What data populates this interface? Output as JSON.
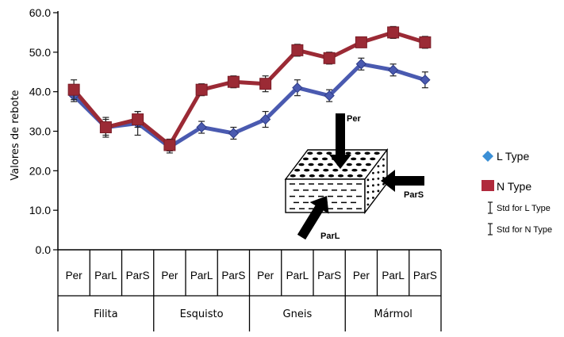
{
  "chart_data": {
    "type": "line",
    "ylabel": "Valores de rebote",
    "ylim": [
      0,
      60
    ],
    "yticks": [
      "0.0",
      "10.0",
      "20.0",
      "30.0",
      "40.0",
      "50.0",
      "60.0"
    ],
    "categories": [
      "Per",
      "ParL",
      "ParS",
      "Per",
      "ParL",
      "ParS",
      "Per",
      "ParL",
      "ParS",
      "Per",
      "ParL",
      "ParS"
    ],
    "groups": [
      "Filita",
      "Esquisto",
      "Gneis",
      "Mármol"
    ],
    "series": [
      {
        "name": "L Type",
        "color": "#4a5ab0",
        "marker": "diamond",
        "values": [
          39.0,
          31.0,
          32.0,
          26.0,
          31.0,
          29.5,
          33.0,
          41.0,
          39.0,
          47.0,
          45.5,
          43.0
        ],
        "std": [
          1.5,
          2.5,
          3.0,
          1.5,
          1.5,
          1.5,
          2.0,
          2.0,
          1.5,
          1.5,
          1.5,
          2.0
        ]
      },
      {
        "name": "N Type",
        "color": "#9b2a35",
        "marker": "square",
        "values": [
          40.5,
          31.0,
          33.0,
          26.5,
          40.5,
          42.5,
          42.0,
          50.5,
          48.5,
          52.5,
          55.0,
          52.5
        ],
        "std": [
          2.5,
          2.0,
          2.0,
          1.5,
          1.5,
          1.5,
          2.0,
          1.5,
          1.5,
          1.0,
          1.5,
          1.5
        ]
      }
    ],
    "legend": {
      "position": "right",
      "std_labels": [
        "Std for L Type",
        "Std for N Type"
      ]
    },
    "diagram_labels": [
      "Per",
      "ParS",
      "ParL"
    ],
    "grid": false
  }
}
